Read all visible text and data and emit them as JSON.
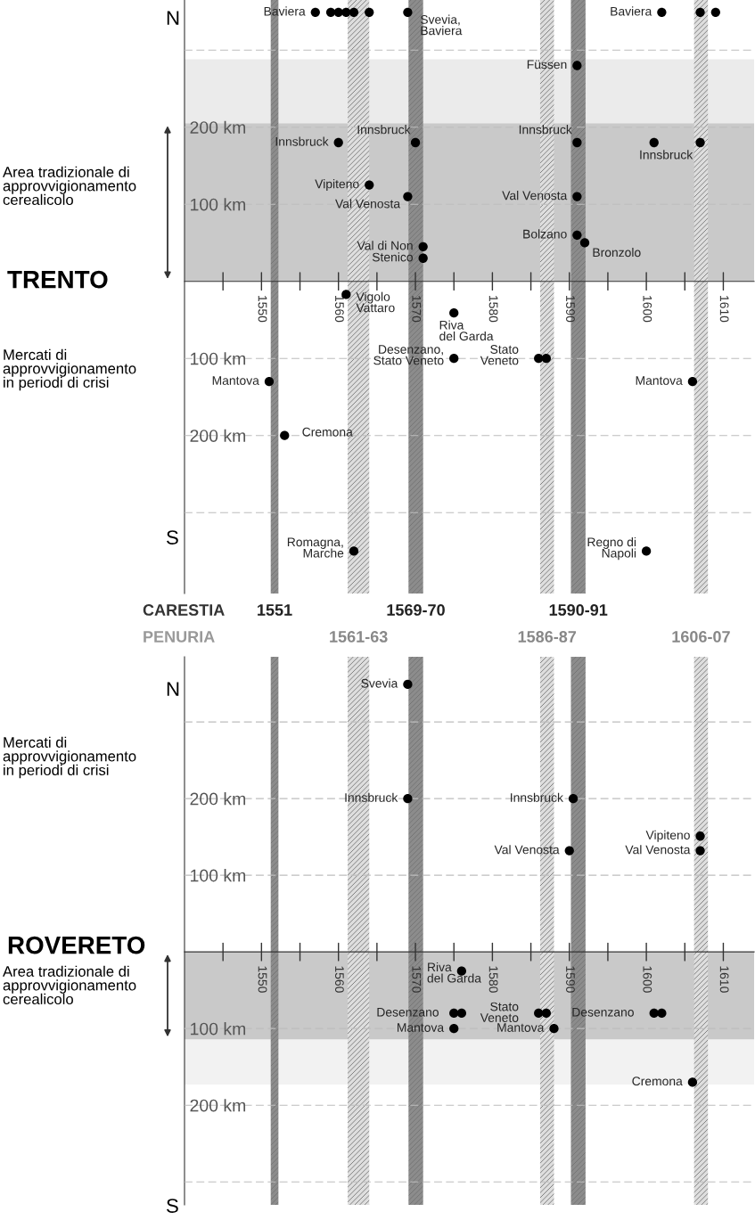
{
  "chart_data": [
    {
      "type": "scatter",
      "xlim": [
        1540,
        1614
      ],
      "ylim": [
        -405,
        365
      ],
      "xticks": [
        1550,
        1560,
        1570,
        1580,
        1590,
        1600,
        1610
      ],
      "yticks": [
        {
          "value": -300,
          "label": null
        },
        {
          "value": -200,
          "label": "200 km"
        },
        {
          "value": -100,
          "label": "100 km"
        },
        {
          "value": 100,
          "label": "100 km"
        },
        {
          "value": 200,
          "label": "200 km"
        },
        {
          "value": 300,
          "label": null
        }
      ],
      "grid": "y",
      "marker": "circle",
      "series": [
        {
          "color": "#000000",
          "x": [
            1557,
            1559,
            1560,
            1561,
            1562,
            1564,
            1569,
            1602,
            1607,
            1609,
            1591,
            1560,
            1570,
            1591,
            1601,
            1607,
            1564,
            1569,
            1591,
            1591,
            1592,
            1571,
            1571,
            1561,
            1575,
            1575,
            1586,
            1587,
            1551,
            1606,
            1553,
            1562,
            1600
          ],
          "values": [
            349,
            349,
            349,
            349,
            349,
            349,
            349,
            349,
            349,
            349,
            280,
            180,
            180,
            180,
            180,
            180,
            125,
            110,
            110,
            60,
            50,
            45,
            30,
            -17,
            -41,
            -100,
            -100,
            -100,
            -130,
            -130,
            -200,
            -350,
            -350
          ]
        }
      ],
      "bands": [
        {
          "axis": "y",
          "from": 0,
          "to": 288,
          "color": "#ebebeb"
        },
        {
          "axis": "y",
          "from": 0,
          "to": 205,
          "color": "#c9c9c9"
        },
        {
          "axis": "x",
          "from": 1551.2,
          "to": 1552.2,
          "label": "1551",
          "color": "#8c8c8c"
        },
        {
          "axis": "x",
          "from": 1561.2,
          "to": 1564,
          "label": "1561-63",
          "color": "#dedede"
        },
        {
          "axis": "x",
          "from": 1569.1,
          "to": 1571,
          "label": "1569-70",
          "color": "#8c8c8c"
        },
        {
          "axis": "x",
          "from": 1586.2,
          "to": 1588,
          "label": "1586-87",
          "color": "#dedede"
        },
        {
          "axis": "x",
          "from": 1590.2,
          "to": 1592.1,
          "label": "1590-91",
          "color": "#8c8c8c"
        },
        {
          "axis": "x",
          "from": 1606.2,
          "to": 1608,
          "label": "1606-07",
          "color": "#dedede"
        }
      ],
      "annotations": [
        {
          "text": "Baviera",
          "x": 1557,
          "y": 349
        },
        {
          "text": "Svevia,\nBaviera",
          "x": 1569,
          "y": 349
        },
        {
          "text": "Baviera",
          "x": 1602,
          "y": 349
        },
        {
          "text": "Füssen",
          "x": 1591,
          "y": 280
        },
        {
          "text": "Innsbruck",
          "x": 1560,
          "y": 180
        },
        {
          "text": "Innsbruck",
          "x": 1570,
          "y": 180
        },
        {
          "text": "Innsbruck",
          "x": 1591,
          "y": 180
        },
        {
          "text": "Innsbruck",
          "x": 1607,
          "y": 180
        },
        {
          "text": "Vipiteno",
          "x": 1564,
          "y": 125
        },
        {
          "text": "Val Venosta",
          "x": 1569,
          "y": 110
        },
        {
          "text": "Val Venosta",
          "x": 1591,
          "y": 110
        },
        {
          "text": "Bolzano",
          "x": 1591,
          "y": 60
        },
        {
          "text": "Bronzolo",
          "x": 1592,
          "y": 50
        },
        {
          "text": "Val di Non",
          "x": 1571,
          "y": 45
        },
        {
          "text": "Stenico",
          "x": 1571,
          "y": 30
        },
        {
          "text": "Vigolo\nVattaro",
          "x": 1561,
          "y": -17
        },
        {
          "text": "Riva\ndel Garda",
          "x": 1575,
          "y": -41
        },
        {
          "text": "Desenzano,\nStato Veneto",
          "x": 1575,
          "y": -100
        },
        {
          "text": "Stato\nVeneto",
          "x": 1586,
          "y": -100
        },
        {
          "text": "Mantova",
          "x": 1551,
          "y": -130
        },
        {
          "text": "Mantova",
          "x": 1606,
          "y": -130
        },
        {
          "text": "Cremona",
          "x": 1553,
          "y": -200
        },
        {
          "text": "Romagna,\nMarche",
          "x": 1562,
          "y": -350
        },
        {
          "text": "Regno di\nNapoli",
          "x": 1600,
          "y": -350
        },
        "TRENTO",
        "Area tradizionale di\napprovvigionamento\ncerealicolo",
        "Mercati di\napprovvigionamento\nin periodi di crisi",
        "N",
        "S",
        "CARESTIA",
        "PENURIA"
      ]
    },
    {
      "type": "scatter",
      "xlim": [
        1540,
        1614
      ],
      "ylim": [
        -330,
        385
      ],
      "xticks": [
        1550,
        1560,
        1570,
        1580,
        1590,
        1600,
        1610
      ],
      "yticks": [
        {
          "value": -300,
          "label": null
        },
        {
          "value": -200,
          "label": "200 km"
        },
        {
          "value": -100,
          "label": "100 km"
        },
        {
          "value": 100,
          "label": "100 km"
        },
        {
          "value": 200,
          "label": "200 km"
        },
        {
          "value": 300,
          "label": null
        }
      ],
      "grid": "y",
      "marker": "circle",
      "series": [
        {
          "color": "#000000",
          "x": [
            1569,
            1569,
            1590.5,
            1590,
            1607,
            1607,
            1576,
            1575,
            1576,
            1575,
            1586,
            1587,
            1588,
            1601,
            1602,
            1606
          ],
          "values": [
            349,
            200,
            200,
            132,
            151,
            132,
            -25,
            -80,
            -80,
            -100,
            -80,
            -80,
            -100,
            -80,
            -80,
            -170
          ]
        }
      ],
      "bands": [
        {
          "axis": "y",
          "from": 0,
          "to": -173,
          "color": "#f2f2f2"
        },
        {
          "axis": "y",
          "from": 0,
          "to": -114,
          "color": "#c9c9c9"
        },
        {
          "axis": "x",
          "from": 1551.2,
          "to": 1552.2,
          "color": "#8c8c8c"
        },
        {
          "axis": "x",
          "from": 1561.2,
          "to": 1564,
          "color": "#dedede"
        },
        {
          "axis": "x",
          "from": 1569.1,
          "to": 1571,
          "color": "#8c8c8c"
        },
        {
          "axis": "x",
          "from": 1586.2,
          "to": 1588,
          "color": "#dedede"
        },
        {
          "axis": "x",
          "from": 1590.2,
          "to": 1592.1,
          "color": "#8c8c8c"
        },
        {
          "axis": "x",
          "from": 1606.2,
          "to": 1608,
          "color": "#dedede"
        }
      ],
      "annotations": [
        {
          "text": "Svevia",
          "x": 1569,
          "y": 349
        },
        {
          "text": "Innsbruck",
          "x": 1569,
          "y": 200
        },
        {
          "text": "Innsbruck",
          "x": 1590.5,
          "y": 200
        },
        {
          "text": "Val Venosta",
          "x": 1590,
          "y": 132
        },
        {
          "text": "Vipiteno",
          "x": 1607,
          "y": 151
        },
        {
          "text": "Val Venosta",
          "x": 1607,
          "y": 132
        },
        {
          "text": "Riva\ndel Garda",
          "x": 1576,
          "y": -25
        },
        {
          "text": "Desenzano",
          "x": 1575,
          "y": -80
        },
        {
          "text": "Mantova",
          "x": 1575,
          "y": -100
        },
        {
          "text": "Stato\nVeneto",
          "x": 1586,
          "y": -80
        },
        {
          "text": "Mantova",
          "x": 1588,
          "y": -100
        },
        {
          "text": "Desenzano",
          "x": 1601,
          "y": -80
        },
        {
          "text": "Cremona",
          "x": 1606,
          "y": -170
        },
        "ROVERETO",
        "Mercati di\napprovvigionamento\nin periodi di crisi",
        "Area tradizionale di\napprovvigionamento\ncerealicolo",
        "N",
        "S"
      ]
    }
  ]
}
